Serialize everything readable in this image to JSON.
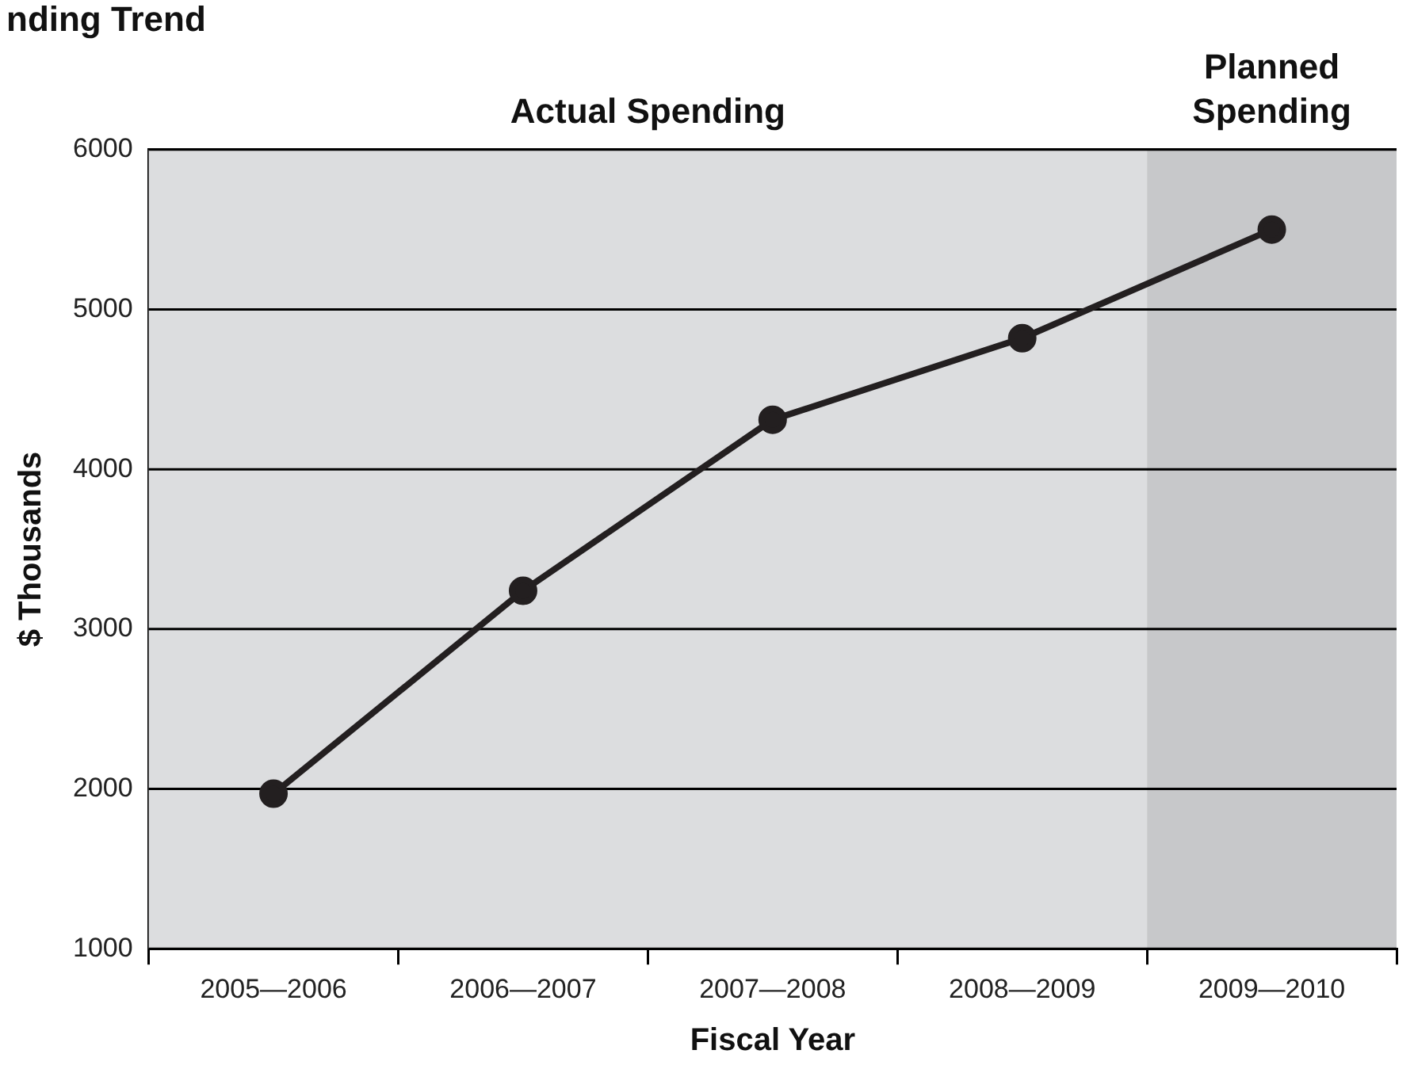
{
  "chart_data": {
    "type": "line",
    "title": "nding Trend",
    "xlabel": "Fiscal Year",
    "ylabel": "$ Thousands",
    "categories": [
      "2005—2006",
      "2006—2007",
      "2007—2008",
      "2008—2009",
      "2009—2010"
    ],
    "series": [
      {
        "color": "#231f20",
        "values": [
          1970,
          3240,
          4310,
          4820,
          5500
        ]
      }
    ],
    "ylim": [
      1000,
      6000
    ],
    "yticks": [
      1000,
      2000,
      3000,
      4000,
      5000,
      6000
    ],
    "grid": "y",
    "legend": false,
    "marker": "circle",
    "line_style": "solid",
    "bands": [
      {
        "axis": "x",
        "from": "2005—2006",
        "to": "2008—2009",
        "label": "Actual Spending",
        "color": "#dcdddf"
      },
      {
        "axis": "x",
        "from": "2009—2010",
        "to": "2009—2010",
        "label": "Planned Spending",
        "color": "#c7c8ca"
      }
    ]
  }
}
